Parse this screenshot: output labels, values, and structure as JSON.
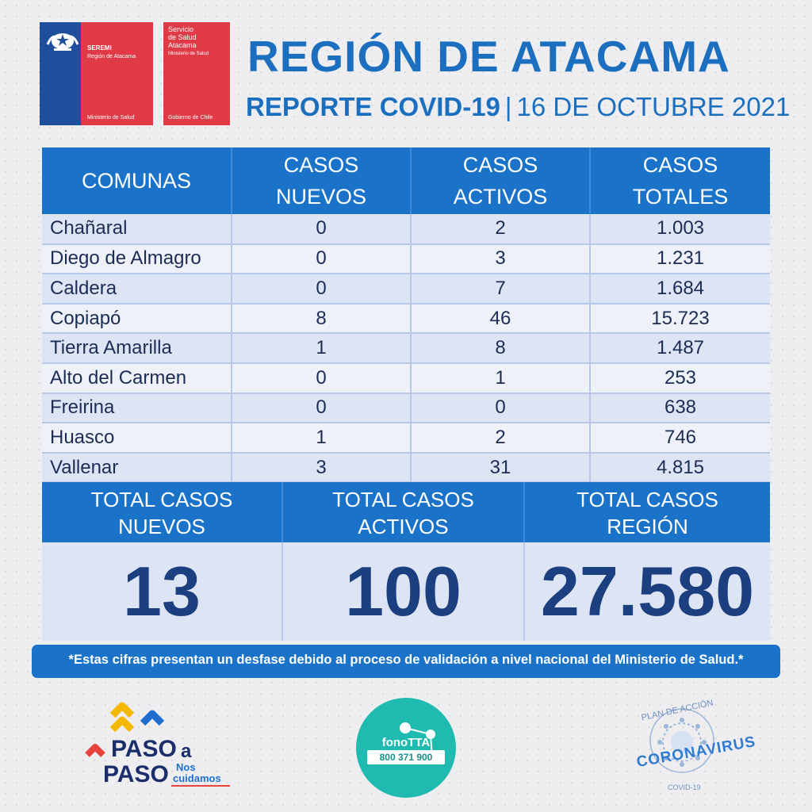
{
  "logos": {
    "seremi_title": "SEREMI",
    "seremi_region": "Región de Atacama",
    "seremi_ministry": "Ministerio de Salud",
    "servicio_line1": "Servicio",
    "servicio_line2": "de Salud",
    "servicio_line3": "Atacama",
    "servicio_ministry": "Ministerio de Salud",
    "servicio_gov": "Gobierno de Chile"
  },
  "header": {
    "title": "REGIÓN DE ATACAMA",
    "report": "REPORTE COVID-19",
    "separator": "|",
    "date": "16 DE OCTUBRE 2021"
  },
  "table": {
    "columns": [
      "COMUNAS",
      "CASOS NUEVOS",
      "CASOS ACTIVOS",
      "CASOS TOTALES"
    ],
    "rows": [
      {
        "comuna": "Chañaral",
        "nuevos": "0",
        "activos": "2",
        "totales": "1.003"
      },
      {
        "comuna": "Diego de Almagro",
        "nuevos": "0",
        "activos": "3",
        "totales": "1.231"
      },
      {
        "comuna": "Caldera",
        "nuevos": "0",
        "activos": "7",
        "totales": "1.684"
      },
      {
        "comuna": "Copiapó",
        "nuevos": "8",
        "activos": "46",
        "totales": "15.723"
      },
      {
        "comuna": "Tierra Amarilla",
        "nuevos": "1",
        "activos": "8",
        "totales": "1.487"
      },
      {
        "comuna": "Alto del Carmen",
        "nuevos": "0",
        "activos": "1",
        "totales": "253"
      },
      {
        "comuna": "Freirina",
        "nuevos": "0",
        "activos": "0",
        "totales": "638"
      },
      {
        "comuna": "Huasco",
        "nuevos": "1",
        "activos": "2",
        "totales": "746"
      },
      {
        "comuna": "Vallenar",
        "nuevos": "3",
        "activos": "31",
        "totales": "4.815"
      }
    ]
  },
  "totals": {
    "nuevos_label_1": "TOTAL CASOS",
    "nuevos_label_2": "NUEVOS",
    "activos_label_1": "TOTAL CASOS",
    "activos_label_2": "ACTIVOS",
    "region_label_1": "TOTAL CASOS",
    "region_label_2": "REGIÓN",
    "nuevos": "13",
    "activos": "100",
    "region": "27.580"
  },
  "note": "*Estas cifras presentan un desfase debido al proceso de validación a nivel nacional del Ministerio de Salud.*",
  "footer": {
    "paso_1": "PASO",
    "paso_a": "a",
    "paso_2": "PASO",
    "nos": "Nos",
    "cuidamos": "cuidamos",
    "fono_title": "fonoTTA",
    "fono_phone": "800 371 900",
    "corona_top": "PLAN DE ACCIÓN",
    "corona_main": "CORONAVIRUS",
    "corona_bottom": "COVID-19"
  },
  "colors": {
    "brand_blue": "#1a73c8",
    "dark_blue": "#1c3f7f",
    "chile_red": "#e03a46",
    "chile_blue": "#1d4f9c",
    "teal": "#1fbab0"
  }
}
